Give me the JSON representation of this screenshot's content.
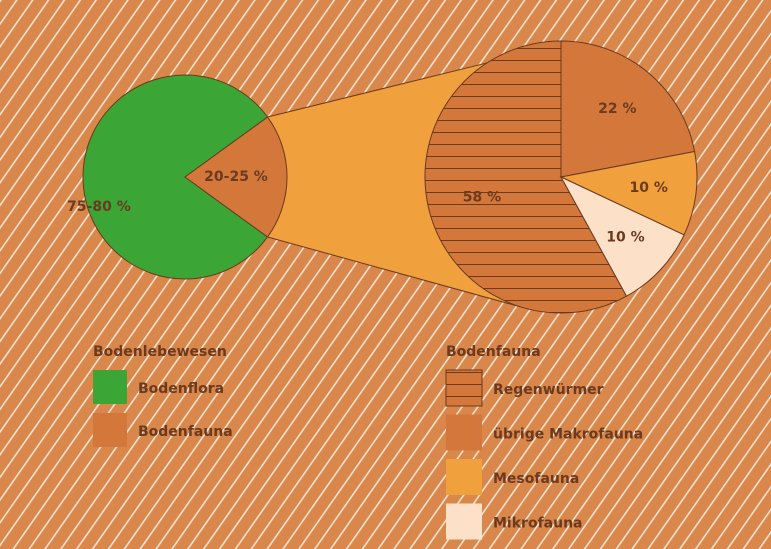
{
  "chart_data": [
    {
      "type": "pie",
      "title": "Bodenlebewesen",
      "categories": [
        "Bodenflora",
        "Bodenfauna"
      ],
      "values": [
        80,
        20
      ],
      "value_labels": [
        "75-80 %",
        "20-25 %"
      ],
      "colors": [
        "#3ba535",
        "#d4773a"
      ]
    },
    {
      "type": "pie",
      "title": "Bodenfauna",
      "categories": [
        "Regenwürmer",
        "übrige Makrofauna",
        "Mesofauna",
        "Mikrofauna"
      ],
      "values": [
        58,
        22,
        10,
        10
      ],
      "value_labels": [
        "58 %",
        "22 %",
        "10 %",
        "10 %"
      ],
      "colors": [
        "#d4773a",
        "#d4773a",
        "#f0a03c",
        "#fde0c8"
      ],
      "hatches": [
        "horizontal",
        null,
        null,
        null
      ]
    }
  ]
}
